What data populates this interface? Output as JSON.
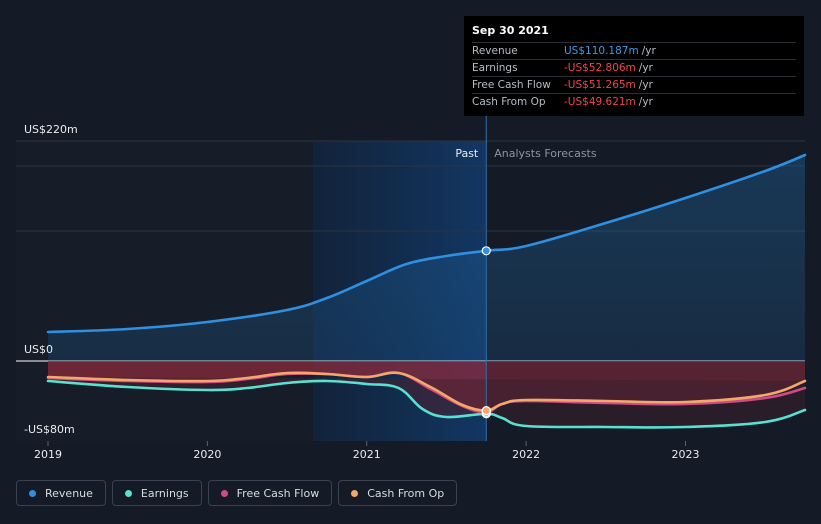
{
  "tooltip": {
    "date": "Sep 30 2021",
    "rows": [
      {
        "label": "Revenue",
        "value": "US$110.187m",
        "unit": "/yr",
        "color": "#3d9ae8"
      },
      {
        "label": "Earnings",
        "value": "-US$52.806m",
        "unit": "/yr",
        "color": "#f0454b"
      },
      {
        "label": "Free Cash Flow",
        "value": "-US$51.265m",
        "unit": "/yr",
        "color": "#f0454b"
      },
      {
        "label": "Cash From Op",
        "value": "-US$49.621m",
        "unit": "/yr",
        "color": "#f0454b"
      }
    ]
  },
  "chart_data": {
    "type": "line",
    "y_axis_labels": [
      "US$220m",
      "US$0",
      "-US$80m"
    ],
    "ylim": [
      -80,
      220
    ],
    "x_ticks": [
      "2019",
      "2020",
      "2021",
      "2022",
      "2023"
    ],
    "past_label": "Past",
    "forecast_label": "Analysts Forecasts",
    "divider_x": 2021.75,
    "series": [
      {
        "name": "Revenue",
        "color": "#2f8fe0",
        "points": [
          [
            2019.0,
            29
          ],
          [
            2019.5,
            32
          ],
          [
            2020.0,
            39
          ],
          [
            2020.5,
            51
          ],
          [
            2020.75,
            63
          ],
          [
            2021.0,
            80
          ],
          [
            2021.25,
            97
          ],
          [
            2021.5,
            105
          ],
          [
            2021.75,
            110.2
          ],
          [
            2022.0,
            115
          ],
          [
            2022.5,
            138
          ],
          [
            2023.0,
            163
          ],
          [
            2023.5,
            190
          ],
          [
            2023.75,
            206
          ]
        ]
      },
      {
        "name": "Earnings",
        "color": "#58e0d0",
        "points": [
          [
            2019.0,
            -20
          ],
          [
            2019.5,
            -26
          ],
          [
            2020.0,
            -29
          ],
          [
            2020.25,
            -27
          ],
          [
            2020.5,
            -22
          ],
          [
            2020.75,
            -20
          ],
          [
            2021.0,
            -23
          ],
          [
            2021.2,
            -27
          ],
          [
            2021.35,
            -48
          ],
          [
            2021.5,
            -56
          ],
          [
            2021.75,
            -52.8
          ],
          [
            2021.85,
            -57
          ],
          [
            2022.0,
            -65
          ],
          [
            2022.5,
            -66
          ],
          [
            2023.0,
            -66
          ],
          [
            2023.5,
            -61
          ],
          [
            2023.75,
            -49
          ]
        ]
      },
      {
        "name": "Free Cash Flow",
        "color": "#cf4a86",
        "points": [
          [
            2019.0,
            -17
          ],
          [
            2019.5,
            -20
          ],
          [
            2020.0,
            -21
          ],
          [
            2020.25,
            -18
          ],
          [
            2020.5,
            -13
          ],
          [
            2020.75,
            -13
          ],
          [
            2021.0,
            -16
          ],
          [
            2021.2,
            -12
          ],
          [
            2021.4,
            -28
          ],
          [
            2021.6,
            -45
          ],
          [
            2021.75,
            -51.3
          ],
          [
            2021.85,
            -43
          ],
          [
            2022.0,
            -40
          ],
          [
            2022.5,
            -42
          ],
          [
            2023.0,
            -43
          ],
          [
            2023.5,
            -37
          ],
          [
            2023.75,
            -27
          ]
        ]
      },
      {
        "name": "Cash From Op",
        "color": "#f3a86a",
        "points": [
          [
            2019.0,
            -16
          ],
          [
            2019.5,
            -19
          ],
          [
            2020.0,
            -20
          ],
          [
            2020.25,
            -17
          ],
          [
            2020.5,
            -12
          ],
          [
            2020.75,
            -13
          ],
          [
            2021.0,
            -16
          ],
          [
            2021.2,
            -12
          ],
          [
            2021.4,
            -26
          ],
          [
            2021.6,
            -44
          ],
          [
            2021.75,
            -49.6
          ],
          [
            2021.85,
            -43
          ],
          [
            2022.0,
            -39
          ],
          [
            2022.5,
            -40
          ],
          [
            2023.0,
            -41
          ],
          [
            2023.5,
            -34
          ],
          [
            2023.75,
            -20
          ]
        ]
      }
    ]
  }
}
